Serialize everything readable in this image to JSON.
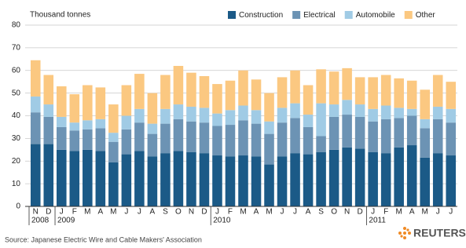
{
  "chart_data": {
    "type": "stacked_bar",
    "y_axis_label": "Thousand tonnes",
    "categories": [
      "N",
      "D",
      "J",
      "F",
      "M",
      "A",
      "M",
      "J",
      "J",
      "A",
      "S",
      "O",
      "N",
      "D",
      "J",
      "F",
      "M",
      "A",
      "M",
      "J",
      "J",
      "A",
      "S",
      "O",
      "N",
      "D",
      "J",
      "F",
      "M",
      "A",
      "M",
      "J",
      "J"
    ],
    "year_labels": [
      "2008",
      null,
      "2009",
      null,
      null,
      null,
      null,
      null,
      null,
      null,
      null,
      null,
      null,
      null,
      "2010",
      null,
      null,
      null,
      null,
      null,
      null,
      null,
      null,
      null,
      null,
      null,
      "2011",
      null,
      null,
      null,
      null,
      null,
      null
    ],
    "series": [
      {
        "name": "Construction",
        "color": "#1b5a87",
        "values": [
          27.5,
          27.5,
          25,
          24.5,
          25,
          24.5,
          19.5,
          23,
          24.5,
          22,
          23.5,
          24.5,
          24,
          23.5,
          22.5,
          22,
          22.5,
          22,
          18.5,
          22,
          23.5,
          23,
          24,
          25,
          26,
          25.5,
          24,
          23.5,
          26,
          27,
          21.5,
          23.5,
          22.5
        ]
      },
      {
        "name": "Electrical",
        "color": "#6c93b4",
        "values": [
          14,
          12,
          10,
          9,
          9,
          10,
          9,
          11,
          12.5,
          10,
          13,
          14,
          13.5,
          13.5,
          13,
          14,
          15.5,
          14.5,
          13.5,
          15,
          15.5,
          12,
          7,
          14.5,
          14.5,
          14,
          13.5,
          15,
          13,
          13,
          13,
          15,
          14.5
        ]
      },
      {
        "name": "Automobile",
        "color": "#a0cbe5",
        "values": [
          7,
          5.5,
          4.5,
          3.5,
          4,
          4,
          4,
          6,
          6,
          4.5,
          6.5,
          6.5,
          6.5,
          6.5,
          5.5,
          6.5,
          6.5,
          6,
          5.5,
          6.5,
          6.5,
          5.5,
          14.5,
          5.5,
          6.5,
          5.5,
          5.5,
          6,
          4.5,
          3,
          4,
          5.5,
          6
        ]
      },
      {
        "name": "Other",
        "color": "#fbc881",
        "values": [
          16,
          13,
          13.5,
          12.5,
          15.5,
          14,
          12.5,
          13.5,
          15.5,
          13.5,
          15,
          17,
          15,
          14,
          13,
          13,
          15.5,
          13.5,
          12.5,
          13.5,
          14.5,
          13,
          15,
          14.5,
          14,
          12,
          14,
          13.5,
          13,
          12.5,
          13,
          14,
          12
        ]
      }
    ],
    "ylim": [
      0,
      80
    ],
    "yticks": [
      0,
      10,
      20,
      30,
      40,
      50,
      60,
      70,
      80
    ],
    "grid": true,
    "legend": "top-right",
    "source": "Source: Japanese Electric Wire and Cable Makers' Association",
    "logo": "REUTERS"
  }
}
